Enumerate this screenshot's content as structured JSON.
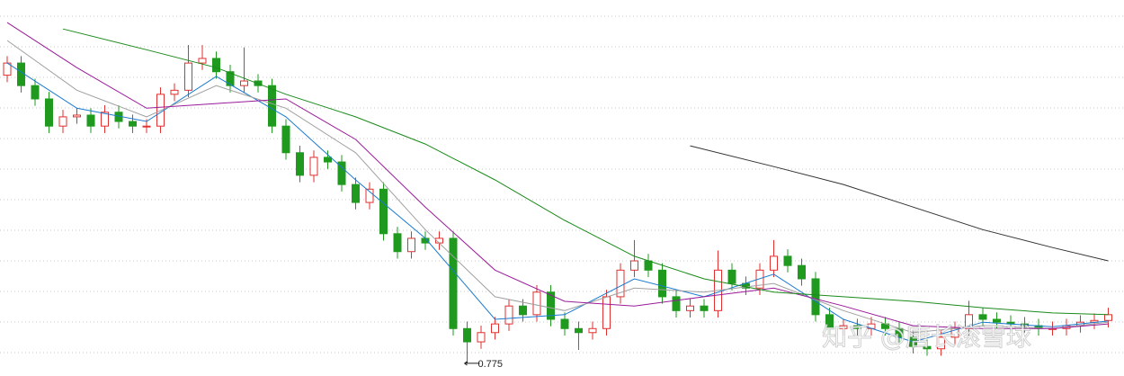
{
  "chart_data": {
    "type": "candlestick",
    "ylim": [
      0.75,
      1.4
    ],
    "up_color": "#e03030",
    "down_color": "#1f9a1f",
    "watermark": "知乎 @唐长滚雪球",
    "open": [
      1.27,
      1.291,
      1.252,
      1.229,
      1.182,
      1.198,
      1.201,
      1.182,
      1.206,
      1.19,
      1.182,
      1.182,
      1.237,
      1.244,
      1.291,
      1.299,
      1.276,
      1.252,
      1.26,
      1.252,
      1.182,
      1.136,
      1.097,
      1.128,
      1.12,
      1.081,
      1.05,
      1.073,
      0.996,
      0.965,
      0.988,
      0.98,
      0.988,
      0.832,
      0.809,
      0.825,
      0.84,
      0.871,
      0.856,
      0.895,
      0.848,
      0.832,
      0.825,
      0.832,
      0.887,
      0.933,
      0.949,
      0.933,
      0.887,
      0.863,
      0.871,
      0.863,
      0.933,
      0.91,
      0.902,
      0.933,
      0.957,
      0.941,
      0.918,
      0.856,
      0.832,
      0.837,
      0.832,
      0.84,
      0.832,
      0.817,
      0.801,
      0.797,
      0.817,
      0.832,
      0.856,
      0.848,
      0.843,
      0.84,
      0.837,
      0.832,
      0.832,
      0.837,
      0.843,
      0.846
    ],
    "high": [
      1.303,
      1.303,
      1.264,
      1.241,
      1.21,
      1.213,
      1.213,
      1.218,
      1.218,
      1.202,
      1.194,
      1.249,
      1.256,
      1.322,
      1.322,
      1.311,
      1.288,
      1.318,
      1.272,
      1.264,
      1.194,
      1.148,
      1.14,
      1.14,
      1.132,
      1.093,
      1.085,
      1.085,
      1.008,
      1.0,
      1.0,
      1.0,
      1.0,
      0.844,
      0.837,
      0.852,
      0.883,
      0.883,
      0.907,
      0.907,
      0.86,
      0.844,
      0.844,
      0.899,
      0.945,
      0.985,
      0.961,
      0.945,
      0.899,
      0.883,
      0.883,
      0.967,
      0.945,
      0.922,
      0.945,
      0.985,
      0.969,
      0.953,
      0.93,
      0.868,
      0.849,
      0.849,
      0.852,
      0.852,
      0.844,
      0.829,
      0.813,
      0.829,
      0.844,
      0.88,
      0.868,
      0.86,
      0.855,
      0.852,
      0.849,
      0.844,
      0.849,
      0.855,
      0.858,
      0.868
    ],
    "low": [
      1.258,
      1.24,
      1.217,
      1.17,
      1.17,
      1.186,
      1.17,
      1.17,
      1.178,
      1.17,
      1.17,
      1.17,
      1.225,
      1.232,
      1.279,
      1.264,
      1.24,
      1.24,
      1.24,
      1.17,
      1.124,
      1.085,
      1.085,
      1.108,
      1.069,
      1.038,
      1.038,
      0.984,
      0.953,
      0.953,
      0.968,
      0.968,
      0.82,
      0.775,
      0.797,
      0.813,
      0.828,
      0.844,
      0.844,
      0.836,
      0.82,
      0.795,
      0.813,
      0.82,
      0.875,
      0.921,
      0.921,
      0.875,
      0.851,
      0.851,
      0.851,
      0.851,
      0.898,
      0.89,
      0.89,
      0.921,
      0.929,
      0.906,
      0.844,
      0.82,
      0.82,
      0.82,
      0.82,
      0.82,
      0.805,
      0.789,
      0.785,
      0.785,
      0.805,
      0.82,
      0.836,
      0.831,
      0.828,
      0.825,
      0.82,
      0.82,
      0.82,
      0.825,
      0.831,
      0.834
    ],
    "close": [
      1.291,
      1.252,
      1.229,
      1.182,
      1.198,
      1.201,
      1.182,
      1.206,
      1.19,
      1.182,
      1.182,
      1.237,
      1.244,
      1.291,
      1.299,
      1.276,
      1.252,
      1.26,
      1.252,
      1.182,
      1.136,
      1.097,
      1.128,
      1.12,
      1.081,
      1.05,
      1.073,
      0.996,
      0.965,
      0.988,
      0.98,
      0.988,
      0.832,
      0.809,
      0.825,
      0.84,
      0.871,
      0.856,
      0.895,
      0.848,
      0.832,
      0.825,
      0.832,
      0.887,
      0.933,
      0.949,
      0.933,
      0.887,
      0.863,
      0.871,
      0.863,
      0.933,
      0.91,
      0.902,
      0.933,
      0.957,
      0.941,
      0.918,
      0.856,
      0.832,
      0.837,
      0.832,
      0.84,
      0.832,
      0.817,
      0.801,
      0.797,
      0.817,
      0.832,
      0.856,
      0.848,
      0.843,
      0.84,
      0.837,
      0.832,
      0.832,
      0.837,
      0.843,
      0.846,
      0.856
    ],
    "lines": [
      {
        "color": "#1a7ad0",
        "x": [
          0,
          5,
          10,
          15,
          20,
          25,
          30,
          35,
          40,
          45,
          50,
          55,
          60,
          65,
          70,
          75,
          79
        ],
        "values": [
          1.291,
          1.213,
          1.19,
          1.268,
          1.198,
          1.089,
          0.988,
          0.848,
          0.856,
          0.918,
          0.887,
          0.926,
          0.848,
          0.809,
          0.843,
          0.835,
          0.845
        ]
      },
      {
        "color": "#a0a0a0",
        "x": [
          0,
          5,
          10,
          15,
          20,
          25,
          30,
          35,
          40,
          45,
          50,
          55,
          60,
          65,
          70,
          75,
          79
        ],
        "values": [
          1.33,
          1.244,
          1.198,
          1.252,
          1.213,
          1.136,
          1.003,
          0.887,
          0.863,
          0.902,
          0.895,
          0.91,
          0.863,
          0.825,
          0.837,
          0.832,
          0.843
        ]
      },
      {
        "color": "#9a1a9a",
        "x": [
          0,
          5,
          10,
          15,
          20,
          25,
          30,
          35,
          40,
          45,
          50,
          55,
          60,
          65,
          70,
          75,
          79
        ],
        "values": [
          1.361,
          1.283,
          1.213,
          1.221,
          1.229,
          1.159,
          1.042,
          0.933,
          0.879,
          0.871,
          0.887,
          0.902,
          0.871,
          0.837,
          0.832,
          0.832,
          0.84
        ]
      },
      {
        "color": "#1a8a1a",
        "x": [
          4,
          10,
          15,
          20,
          25,
          30,
          35,
          40,
          45,
          50,
          55,
          60,
          65,
          70,
          75,
          79
        ],
        "values": [
          1.35,
          1.314,
          1.283,
          1.237,
          1.198,
          1.151,
          1.089,
          1.019,
          0.957,
          0.918,
          0.895,
          0.887,
          0.879,
          0.868,
          0.859,
          0.856
        ]
      },
      {
        "color": "#333333",
        "x": [
          49,
          55,
          60,
          65,
          70,
          75,
          79
        ],
        "values": [
          1.148,
          1.112,
          1.081,
          1.042,
          1.003,
          0.972,
          0.949
        ]
      }
    ]
  }
}
